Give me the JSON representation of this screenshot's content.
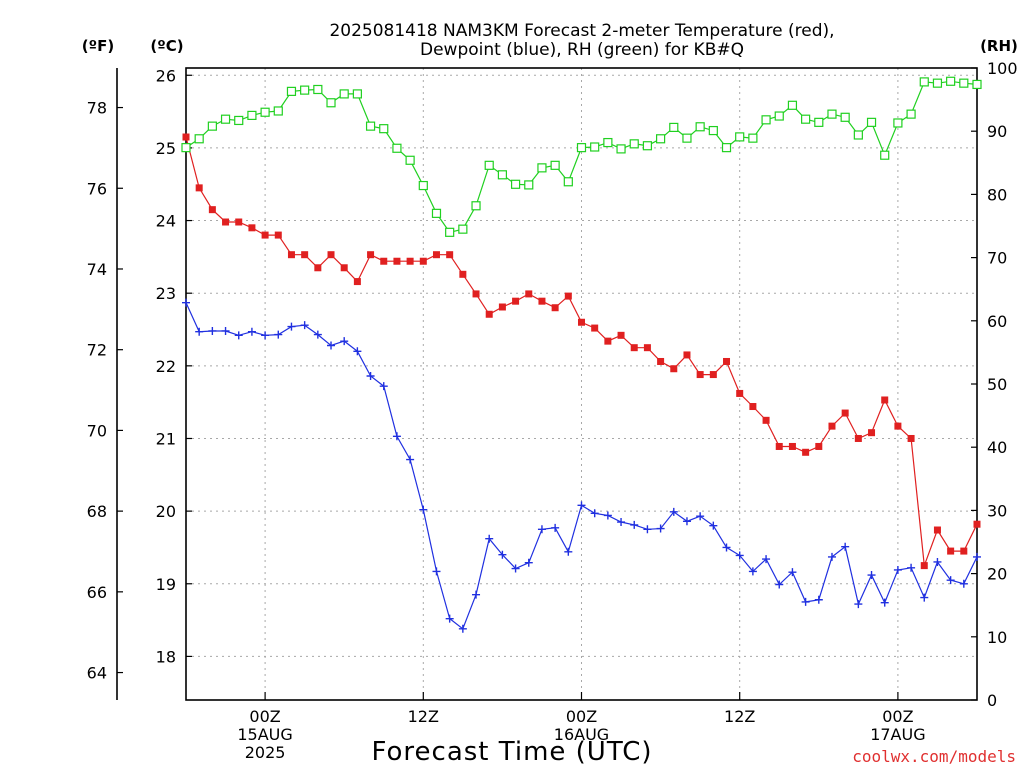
{
  "chart_data": {
    "type": "line",
    "title_lines": [
      "2025081418 NAM3KM Forecast 2-meter Temperature (red),",
      "Dewpoint (blue), RH (green) for KB#Q"
    ],
    "xlabel": "Forecast Time (UTC)",
    "credit": "coolwx.com/models",
    "unit_labels": {
      "fahrenheit": "(ºF)",
      "celsius": "(ºC)",
      "rh": "(RH)"
    },
    "x_range": [
      0,
      60
    ],
    "x_ticks": [
      {
        "hour": 6,
        "lines": [
          "00Z",
          "15AUG",
          "2025"
        ]
      },
      {
        "hour": 18,
        "lines": [
          "12Z"
        ]
      },
      {
        "hour": 30,
        "lines": [
          "00Z",
          "16AUG"
        ]
      },
      {
        "hour": 42,
        "lines": [
          "12Z"
        ]
      },
      {
        "hour": 54,
        "lines": [
          "00Z",
          "17AUG"
        ]
      }
    ],
    "left_axis_celsius": {
      "range": [
        17.4,
        26.1
      ],
      "ticks": [
        18,
        19,
        20,
        21,
        22,
        23,
        24,
        25,
        26
      ]
    },
    "left_axis_fahrenheit": {
      "ticks": [
        64,
        66,
        68,
        70,
        72,
        74,
        76,
        78
      ]
    },
    "right_axis_rh": {
      "range": [
        0,
        100
      ],
      "ticks": [
        0,
        10,
        20,
        30,
        40,
        50,
        60,
        70,
        80,
        90,
        100
      ]
    },
    "grid": "dotted",
    "series": [
      {
        "name": "Temperature",
        "unit": "C",
        "color": "#e02020",
        "marker": "filled-square",
        "values": [
          25.15,
          24.45,
          24.15,
          23.98,
          23.98,
          23.9,
          23.8,
          23.8,
          23.53,
          23.53,
          23.35,
          23.53,
          23.35,
          23.16,
          23.53,
          23.44,
          23.44,
          23.44,
          23.44,
          23.53,
          23.53,
          23.26,
          22.99,
          22.71,
          22.81,
          22.89,
          22.99,
          22.89,
          22.8,
          22.96,
          22.6,
          22.52,
          22.34,
          22.42,
          22.25,
          22.25,
          22.06,
          21.96,
          22.15,
          21.88,
          21.88,
          22.06,
          21.62,
          21.44,
          21.25,
          20.89,
          20.89,
          20.81,
          20.89,
          21.17,
          21.35,
          21.0,
          21.08,
          21.53,
          21.17,
          21.0,
          19.25,
          19.74,
          19.45,
          19.45,
          19.82
        ]
      },
      {
        "name": "Dewpoint",
        "unit": "C",
        "color": "#2030e0",
        "marker": "plus",
        "values": [
          22.87,
          22.47,
          22.48,
          22.48,
          22.42,
          22.47,
          22.42,
          22.43,
          22.54,
          22.56,
          22.43,
          22.28,
          22.34,
          22.2,
          21.86,
          21.72,
          21.03,
          20.71,
          20.02,
          19.17,
          18.52,
          18.38,
          18.85,
          19.62,
          19.4,
          19.21,
          19.29,
          19.75,
          19.77,
          19.44,
          20.08,
          19.97,
          19.94,
          19.85,
          19.81,
          19.75,
          19.76,
          19.99,
          19.86,
          19.93,
          19.8,
          19.5,
          19.39,
          19.17,
          19.34,
          18.99,
          19.16,
          18.75,
          18.78,
          19.37,
          19.51,
          18.72,
          19.12,
          18.74,
          19.19,
          19.22,
          18.81,
          19.3,
          19.05,
          19.0,
          19.37
        ]
      },
      {
        "name": "RH",
        "unit": "%",
        "color": "#20d020",
        "marker": "open-square",
        "values": [
          87.4,
          88.8,
          90.8,
          91.9,
          91.7,
          92.5,
          93.0,
          93.2,
          96.3,
          96.5,
          96.6,
          94.5,
          95.9,
          95.9,
          90.8,
          90.4,
          87.3,
          85.4,
          81.4,
          77.0,
          74.0,
          74.5,
          78.2,
          84.6,
          83.1,
          81.6,
          81.5,
          84.2,
          84.6,
          82.0,
          87.4,
          87.5,
          88.2,
          87.2,
          88.0,
          87.7,
          88.8,
          90.6,
          88.9,
          90.7,
          90.1,
          87.4,
          89.1,
          88.9,
          91.8,
          92.4,
          94.1,
          91.9,
          91.4,
          92.7,
          92.2,
          89.4,
          91.4,
          86.2,
          91.3,
          92.7,
          97.8,
          97.6,
          97.9,
          97.6,
          97.4
        ]
      }
    ]
  }
}
